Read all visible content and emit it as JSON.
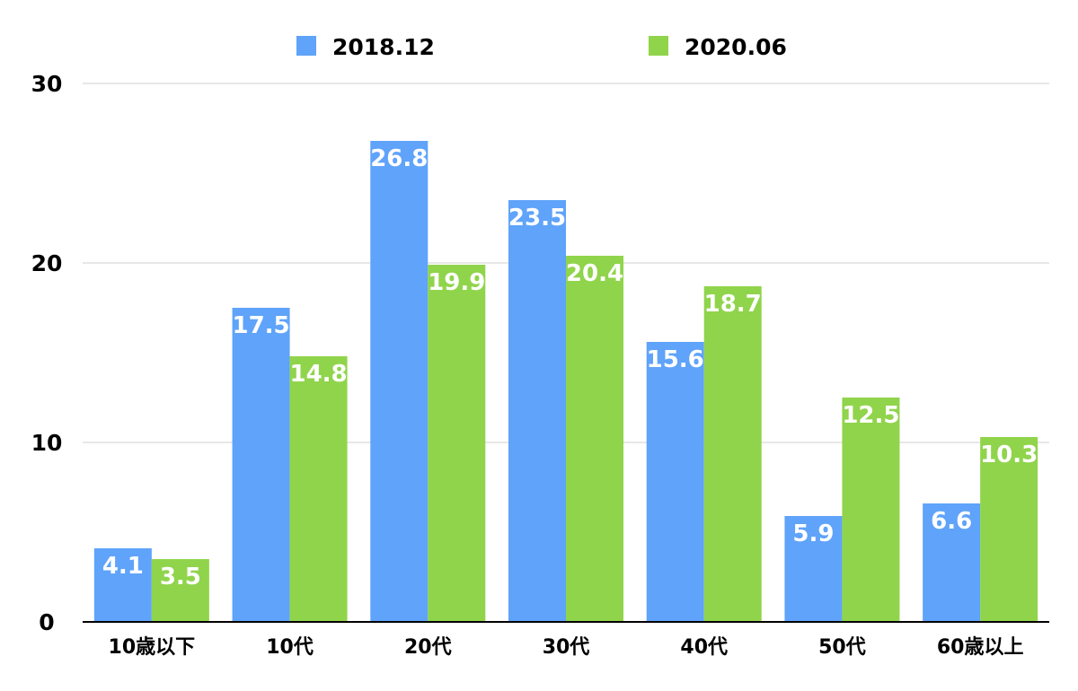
{
  "chart_data": {
    "type": "bar",
    "categories": [
      "10歳以下",
      "10代",
      "20代",
      "30代",
      "40代",
      "50代",
      "60歳以上"
    ],
    "series": [
      {
        "name": "2018.12",
        "values": [
          4.1,
          17.5,
          26.8,
          23.5,
          15.6,
          5.9,
          6.6
        ],
        "color": "#5fa3fa"
      },
      {
        "name": "2020.06",
        "values": [
          3.5,
          14.8,
          19.9,
          20.4,
          18.7,
          12.5,
          10.3
        ],
        "color": "#90d44b"
      }
    ],
    "title": "",
    "xlabel": "",
    "ylabel": "",
    "ylim": [
      0,
      30
    ],
    "yticks": [
      0,
      10,
      20,
      30
    ],
    "grid": true,
    "legend": "top-center",
    "data_labels": true
  }
}
